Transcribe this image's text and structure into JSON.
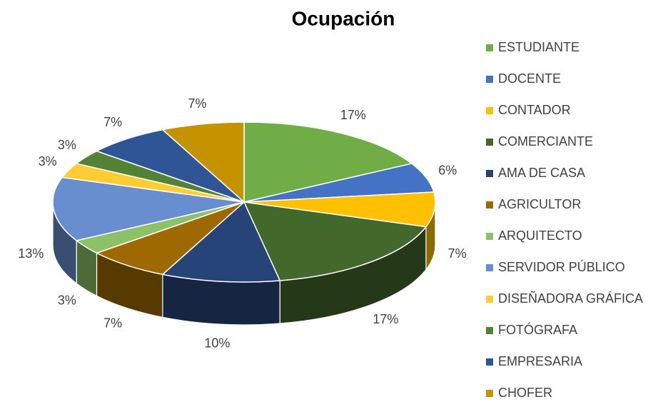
{
  "chart_data": {
    "type": "pie",
    "title": "Ocupación",
    "categories": [
      "ESTUDIANTE",
      "DOCENTE",
      "CONTADOR",
      "COMERCIANTE",
      "AMA DE CASA",
      "AGRICULTOR",
      "ARQUITECTO",
      "SERVIDOR PÚBLICO",
      "DISEÑADORA GRÁFICA",
      "FOTÓGRAFA",
      "EMPRESARIA",
      "CHOFER"
    ],
    "values": [
      17,
      6,
      7,
      17,
      10,
      7,
      3,
      13,
      3,
      3,
      7,
      7
    ],
    "value_labels": [
      "17%",
      "6%",
      "7%",
      "17%",
      "10%",
      "7%",
      "3%",
      "13%",
      "3%",
      "3%",
      "7%",
      "7%"
    ],
    "colors": [
      "#70ad47",
      "#4472c4",
      "#ffc000",
      "#43682b",
      "#264478",
      "#9e6a00",
      "#8cc168",
      "#698ed0",
      "#ffcd33",
      "#548235",
      "#2f5597",
      "#c69300"
    ],
    "legend": "right"
  }
}
